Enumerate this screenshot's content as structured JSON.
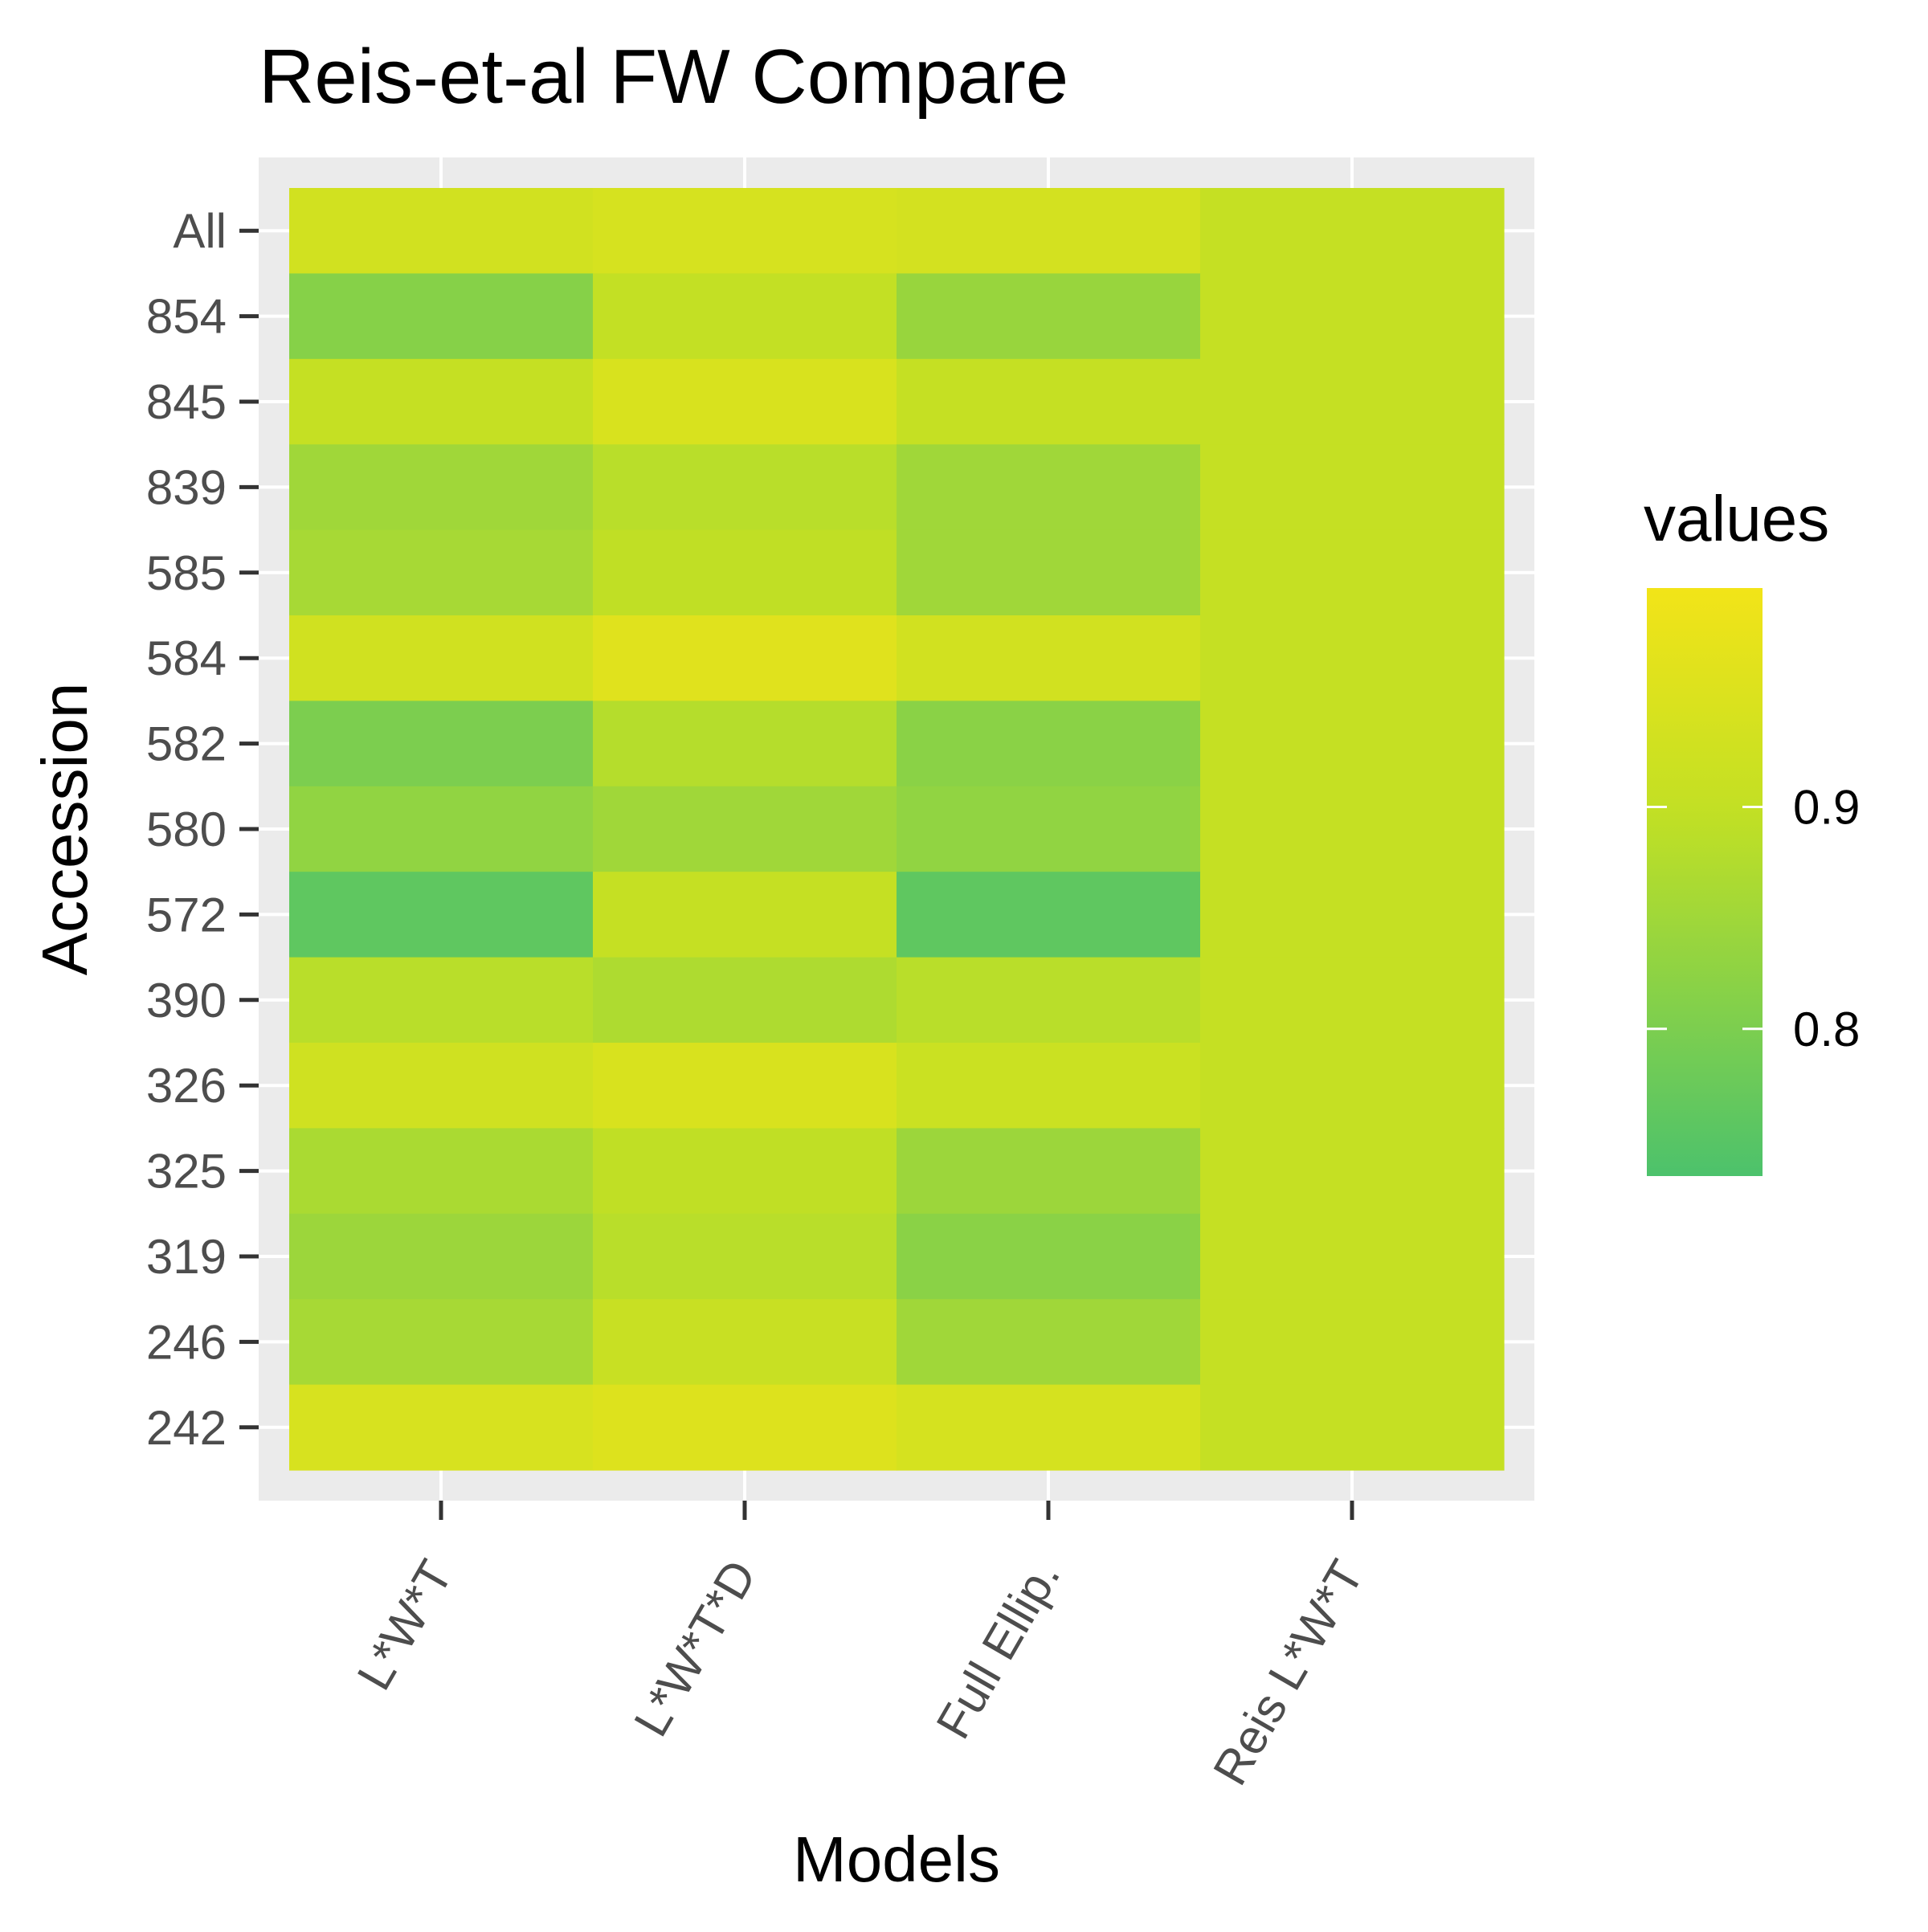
{
  "chart_data": {
    "type": "heatmap",
    "title": "Reis-et-al FW Compare",
    "xlabel": "Models",
    "ylabel": "Accession",
    "x_categories": [
      "L*W*T",
      "L*W*T*D",
      "Full Ellip.",
      "Reis L*W*T"
    ],
    "y_categories": [
      "All",
      "854",
      "845",
      "839",
      "585",
      "584",
      "582",
      "580",
      "572",
      "390",
      "326",
      "325",
      "319",
      "246",
      "242"
    ],
    "values": [
      [
        0.93,
        0.94,
        0.933,
        0.905
      ],
      [
        0.815,
        0.9,
        0.84,
        0.905
      ],
      [
        0.905,
        0.945,
        0.905,
        0.905
      ],
      [
        0.85,
        0.885,
        0.85,
        0.905
      ],
      [
        0.86,
        0.895,
        0.85,
        0.905
      ],
      [
        0.928,
        0.96,
        0.93,
        0.905
      ],
      [
        0.8,
        0.88,
        0.82,
        0.905
      ],
      [
        0.83,
        0.85,
        0.83,
        0.905
      ],
      [
        0.76,
        0.905,
        0.76,
        0.905
      ],
      [
        0.885,
        0.87,
        0.885,
        0.905
      ],
      [
        0.925,
        0.945,
        0.915,
        0.905
      ],
      [
        0.865,
        0.895,
        0.845,
        0.905
      ],
      [
        0.845,
        0.885,
        0.82,
        0.905
      ],
      [
        0.86,
        0.91,
        0.85,
        0.905
      ],
      [
        0.943,
        0.955,
        0.938,
        0.905
      ]
    ],
    "legend": {
      "title": "values",
      "ticks": [
        0.9,
        0.8
      ],
      "tick_labels": [
        "0.9",
        "0.8"
      ],
      "range": [
        0.7337,
        0.9986
      ],
      "placement": "right"
    },
    "colors": {
      "low": "#4cc26c",
      "mid": "#c2e024",
      "high": "#f2e418",
      "panel": "#ebebeb",
      "grid": "#ffffff"
    }
  }
}
